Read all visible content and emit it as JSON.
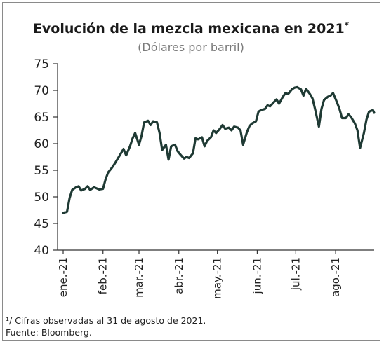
{
  "chart_data": {
    "type": "line",
    "title": "Evolución de la mezcla mexicana en 2021",
    "title_note": "*",
    "subtitle": "(Dólares por barril)",
    "xlabel": "",
    "ylabel": "",
    "ylim": [
      40,
      75
    ],
    "yticks": [
      75,
      70,
      65,
      60,
      55,
      50,
      45,
      40
    ],
    "xlim": [
      "2021-01-01",
      "2021-08-31"
    ],
    "xticks": [
      {
        "label": "ene.-21",
        "date": "2021-01-01"
      },
      {
        "label": "feb.-21",
        "date": "2021-02-01"
      },
      {
        "label": "mar.-21",
        "date": "2021-03-01"
      },
      {
        "label": "abr.-21",
        "date": "2021-04-01"
      },
      {
        "label": "may.-21",
        "date": "2021-05-01"
      },
      {
        "label": "jun.-21",
        "date": "2021-06-01"
      },
      {
        "label": "jul.-21",
        "date": "2021-07-01"
      },
      {
        "label": "ago.-21",
        "date": "2021-08-01"
      }
    ],
    "grid": false,
    "legend": "none",
    "colors": {
      "line": "#1f3a34",
      "axis": "#333333"
    },
    "series": [
      {
        "values": [
          [
            "2021-01-01",
            47.0
          ],
          [
            "2021-01-04",
            47.2
          ],
          [
            "2021-01-06",
            49.8
          ],
          [
            "2021-01-08",
            51.3
          ],
          [
            "2021-01-11",
            51.8
          ],
          [
            "2021-01-13",
            52.0
          ],
          [
            "2021-01-15",
            51.2
          ],
          [
            "2021-01-18",
            51.5
          ],
          [
            "2021-01-20",
            52.0
          ],
          [
            "2021-01-22",
            51.3
          ],
          [
            "2021-01-25",
            51.8
          ],
          [
            "2021-01-27",
            51.6
          ],
          [
            "2021-01-29",
            51.4
          ],
          [
            "2021-02-01",
            51.5
          ],
          [
            "2021-02-03",
            53.3
          ],
          [
            "2021-02-05",
            54.6
          ],
          [
            "2021-02-08",
            55.5
          ],
          [
            "2021-02-10",
            56.2
          ],
          [
            "2021-02-12",
            57.0
          ],
          [
            "2021-02-15",
            58.2
          ],
          [
            "2021-02-17",
            59.0
          ],
          [
            "2021-02-19",
            57.8
          ],
          [
            "2021-02-22",
            59.5
          ],
          [
            "2021-02-24",
            61.0
          ],
          [
            "2021-02-26",
            62.0
          ],
          [
            "2021-03-01",
            59.8
          ],
          [
            "2021-03-03",
            61.5
          ],
          [
            "2021-03-05",
            64.0
          ],
          [
            "2021-03-08",
            64.3
          ],
          [
            "2021-03-10",
            63.5
          ],
          [
            "2021-03-12",
            64.2
          ],
          [
            "2021-03-15",
            64.0
          ],
          [
            "2021-03-17",
            62.0
          ],
          [
            "2021-03-19",
            58.8
          ],
          [
            "2021-03-22",
            59.8
          ],
          [
            "2021-03-24",
            57.0
          ],
          [
            "2021-03-26",
            59.5
          ],
          [
            "2021-03-29",
            59.8
          ],
          [
            "2021-03-31",
            58.6
          ],
          [
            "2021-04-02",
            58.0
          ],
          [
            "2021-04-05",
            57.2
          ],
          [
            "2021-04-07",
            57.5
          ],
          [
            "2021-04-09",
            57.3
          ],
          [
            "2021-04-12",
            58.2
          ],
          [
            "2021-04-14",
            61.0
          ],
          [
            "2021-04-16",
            60.8
          ],
          [
            "2021-04-19",
            61.2
          ],
          [
            "2021-04-21",
            59.5
          ],
          [
            "2021-04-23",
            60.5
          ],
          [
            "2021-04-26",
            61.2
          ],
          [
            "2021-04-28",
            62.5
          ],
          [
            "2021-04-30",
            62.0
          ],
          [
            "2021-05-03",
            62.8
          ],
          [
            "2021-05-05",
            63.5
          ],
          [
            "2021-05-07",
            62.8
          ],
          [
            "2021-05-10",
            63.0
          ],
          [
            "2021-05-12",
            62.5
          ],
          [
            "2021-05-14",
            63.2
          ],
          [
            "2021-05-17",
            63.0
          ],
          [
            "2021-05-19",
            62.5
          ],
          [
            "2021-05-21",
            59.8
          ],
          [
            "2021-05-24",
            62.2
          ],
          [
            "2021-05-26",
            63.3
          ],
          [
            "2021-05-28",
            63.8
          ],
          [
            "2021-05-31",
            64.2
          ],
          [
            "2021-06-02",
            66.0
          ],
          [
            "2021-06-04",
            66.3
          ],
          [
            "2021-06-07",
            66.5
          ],
          [
            "2021-06-09",
            67.2
          ],
          [
            "2021-06-11",
            67.0
          ],
          [
            "2021-06-14",
            67.8
          ],
          [
            "2021-06-16",
            68.3
          ],
          [
            "2021-06-18",
            67.5
          ],
          [
            "2021-06-21",
            68.8
          ],
          [
            "2021-06-23",
            69.5
          ],
          [
            "2021-06-25",
            69.3
          ],
          [
            "2021-06-28",
            70.2
          ],
          [
            "2021-06-30",
            70.5
          ],
          [
            "2021-07-02",
            70.6
          ],
          [
            "2021-07-05",
            70.2
          ],
          [
            "2021-07-07",
            69.0
          ],
          [
            "2021-07-09",
            70.3
          ],
          [
            "2021-07-12",
            69.3
          ],
          [
            "2021-07-14",
            68.5
          ],
          [
            "2021-07-16",
            66.5
          ],
          [
            "2021-07-19",
            63.2
          ],
          [
            "2021-07-21",
            66.5
          ],
          [
            "2021-07-23",
            68.2
          ],
          [
            "2021-07-26",
            68.8
          ],
          [
            "2021-07-28",
            69.0
          ],
          [
            "2021-07-30",
            69.5
          ],
          [
            "2021-08-02",
            67.8
          ],
          [
            "2021-08-04",
            66.5
          ],
          [
            "2021-08-06",
            64.8
          ],
          [
            "2021-08-09",
            64.8
          ],
          [
            "2021-08-11",
            65.5
          ],
          [
            "2021-08-13",
            65.0
          ],
          [
            "2021-08-16",
            63.8
          ],
          [
            "2021-08-18",
            62.5
          ],
          [
            "2021-08-20",
            59.2
          ],
          [
            "2021-08-23",
            62.0
          ],
          [
            "2021-08-25",
            64.5
          ],
          [
            "2021-08-27",
            66.0
          ],
          [
            "2021-08-30",
            66.3
          ],
          [
            "2021-08-31",
            65.8
          ]
        ]
      }
    ]
  },
  "footnotes": [
    "¹/ Cifras observadas al 31 de agosto de 2021.",
    "Fuente: Bloomberg."
  ]
}
